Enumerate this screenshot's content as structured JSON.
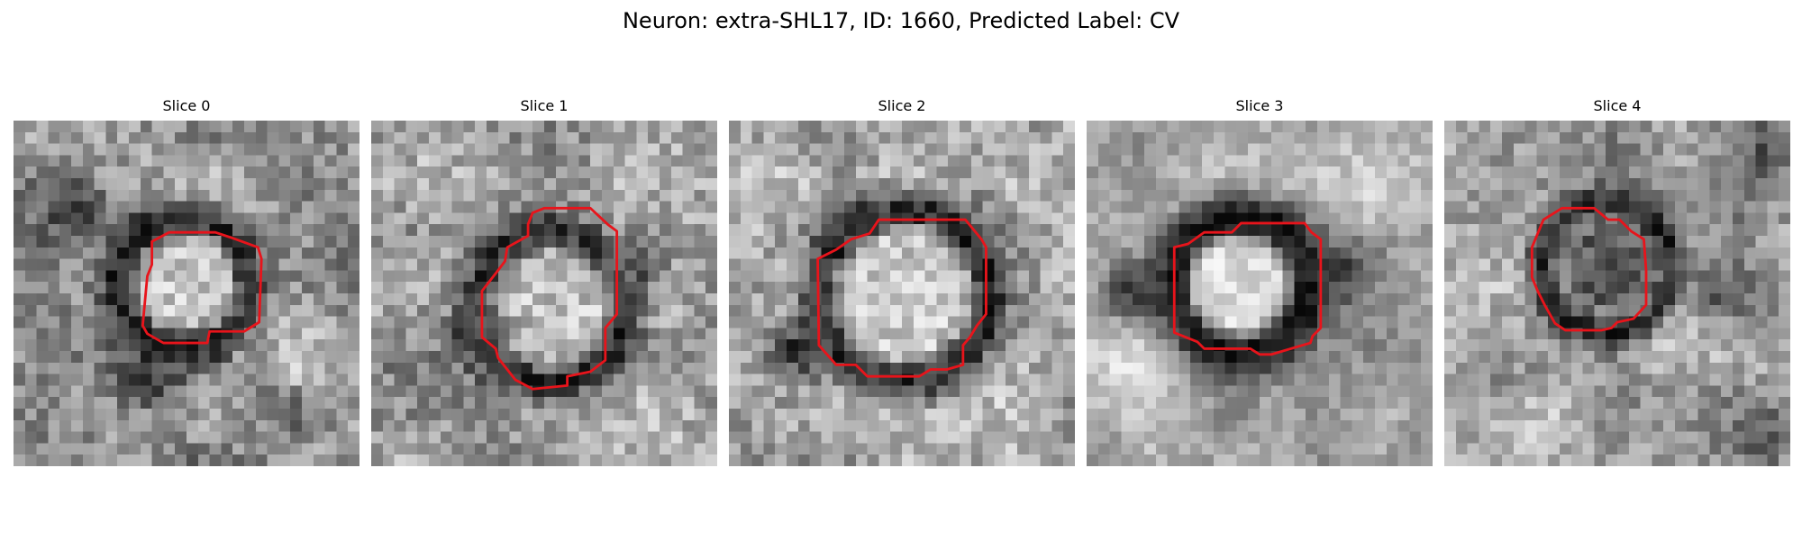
{
  "figure": {
    "title": "Neuron: extra-SHL17, ID: 1660, Predicted Label: CV"
  },
  "slices": [
    {
      "title": "Slice 0"
    },
    {
      "title": "Slice 1"
    },
    {
      "title": "Slice 2"
    },
    {
      "title": "Slice 3"
    },
    {
      "title": "Slice 4"
    }
  ],
  "colors": {
    "contour": "#e8141b"
  }
}
